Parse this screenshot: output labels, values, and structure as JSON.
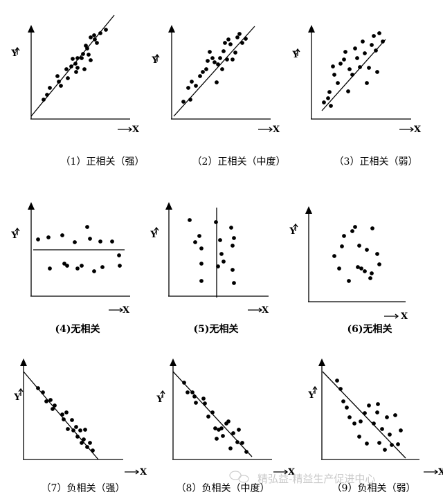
{
  "panels": [
    {
      "id": "p1",
      "caption": "（1）正相关（强）",
      "y_label": "Y",
      "x_label": "X"
    },
    {
      "id": "p2",
      "caption": "（2）正相关（中度）",
      "y_label": "Y",
      "x_label": "X"
    },
    {
      "id": "p3",
      "caption": "（3）正相关（弱）",
      "y_label": "Y",
      "x_label": "X"
    },
    {
      "id": "p4",
      "caption": "(4)无相关",
      "y_label": "Y",
      "x_label": "X"
    },
    {
      "id": "p5",
      "caption": "(5)无相关",
      "y_label": "Y",
      "x_label": "X"
    },
    {
      "id": "p6",
      "caption": "(6)无相关",
      "y_label": "Y",
      "x_label": "X"
    },
    {
      "id": "p7",
      "caption": "（7）负相关（强）",
      "y_label": "Y",
      "x_label": "X"
    },
    {
      "id": "p8",
      "caption": "（8）负相关（中度）",
      "y_label": "Y",
      "x_label": "X"
    },
    {
      "id": "p9",
      "caption": "（9）负相关（弱）",
      "y_label": "Y",
      "x_label": "X"
    }
  ],
  "watermark": "精弘益-精益生产促进中心"
}
